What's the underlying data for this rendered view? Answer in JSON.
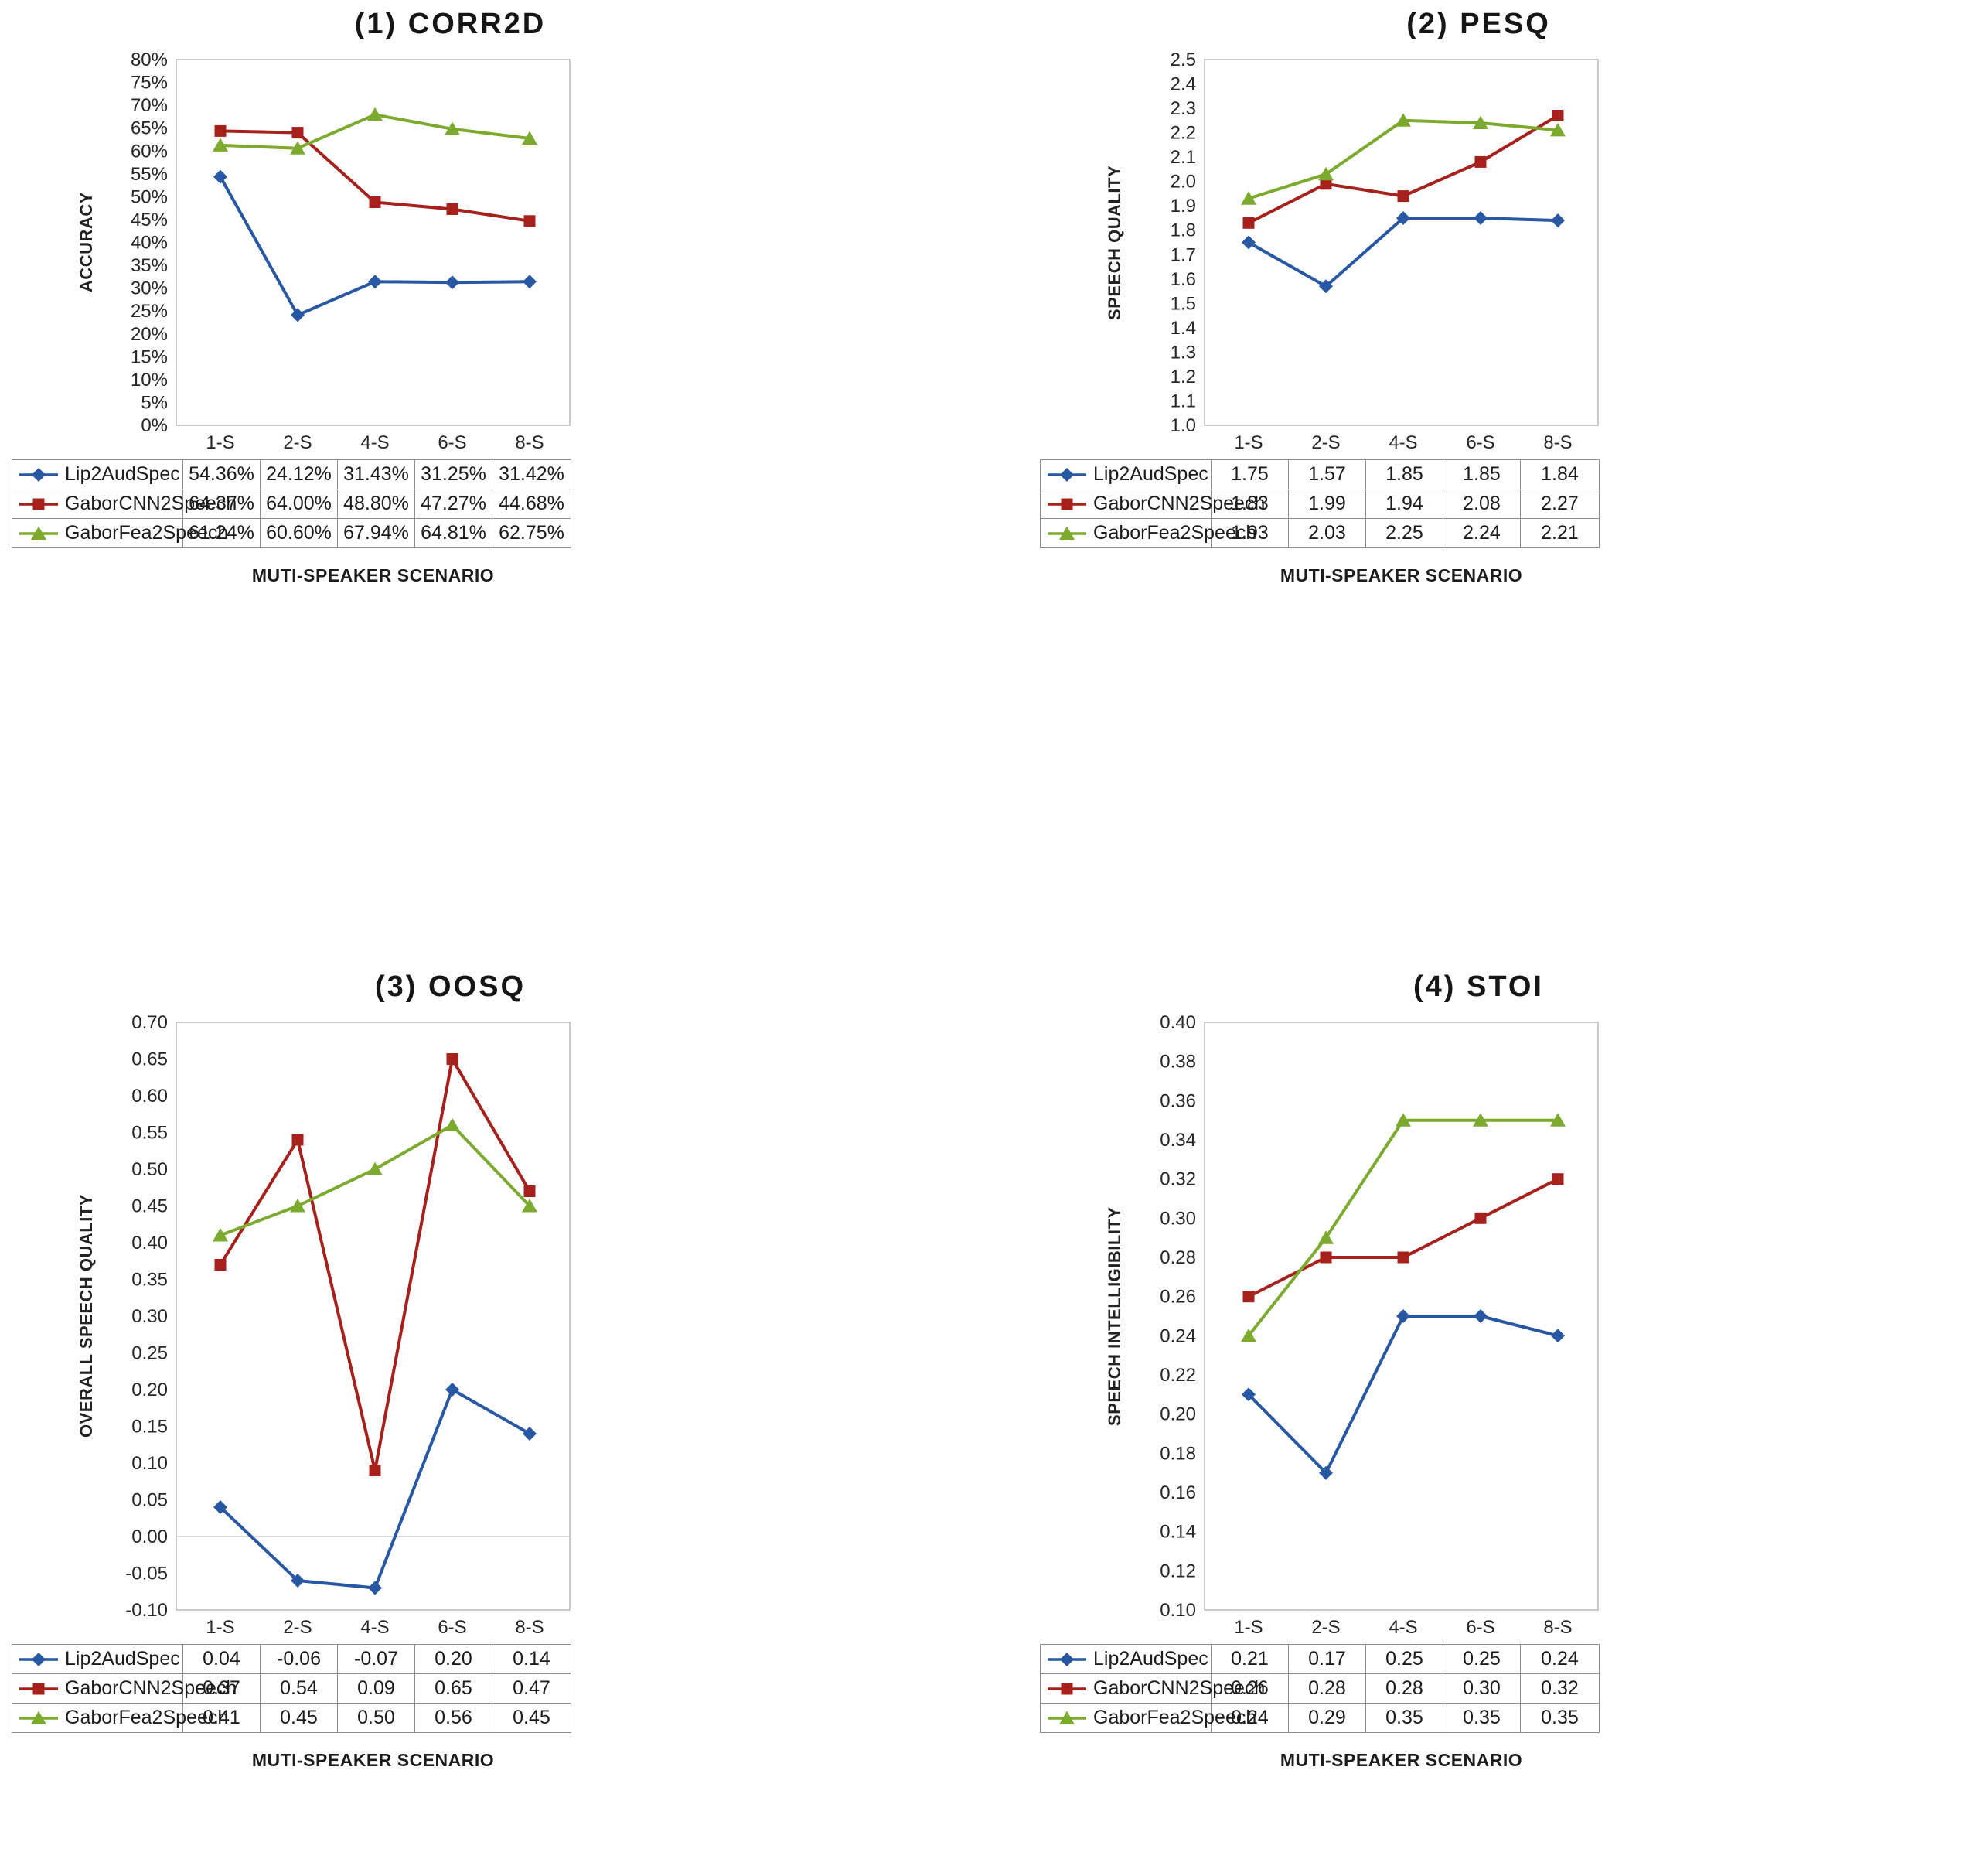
{
  "chart_data": [
    {
      "type": "line",
      "title": "(1) CORR2D",
      "ylabel": "ACCURACY",
      "xlabel": "MUTI-SPEAKER SCENARIO",
      "categories": [
        "1-S",
        "2-S",
        "4-S",
        "6-S",
        "8-S"
      ],
      "ymin": 0,
      "ymax": 80,
      "ystep": 5,
      "yticks": [
        "80%",
        "75%",
        "70%",
        "65%",
        "60%",
        "55%",
        "50%",
        "45%",
        "40%",
        "35%",
        "30%",
        "25%",
        "20%",
        "15%",
        "10%",
        "5%",
        "0%"
      ],
      "grid": false,
      "legend_position": "table-below",
      "series": [
        {
          "name": "Lip2AudSpec",
          "marker": "diamond",
          "color": "#2857A4",
          "values": [
            54.36,
            24.12,
            31.43,
            31.25,
            31.42
          ],
          "labels": [
            "54.36%",
            "24.12%",
            "31.43%",
            "31.25%",
            "31.42%"
          ]
        },
        {
          "name": "GaborCNN2Speech",
          "marker": "square",
          "color": "#A6201C",
          "values": [
            64.37,
            64.0,
            48.8,
            47.27,
            44.68
          ],
          "labels": [
            "64.37%",
            "64.00%",
            "48.80%",
            "47.27%",
            "44.68%"
          ]
        },
        {
          "name": "GaborFea2Speech",
          "marker": "triangle",
          "color": "#7BAA2E",
          "values": [
            61.24,
            60.6,
            67.94,
            64.81,
            62.75
          ],
          "labels": [
            "61.24%",
            "60.60%",
            "67.94%",
            "64.81%",
            "62.75%"
          ]
        }
      ]
    },
    {
      "type": "line",
      "title": "(2) PESQ",
      "ylabel": "SPEECH QUALITY",
      "xlabel": "MUTI-SPEAKER SCENARIO",
      "categories": [
        "1-S",
        "2-S",
        "4-S",
        "6-S",
        "8-S"
      ],
      "ymin": 1.0,
      "ymax": 2.5,
      "ystep": 0.1,
      "yticks": [
        "2.5",
        "2.4",
        "2.3",
        "2.2",
        "2.1",
        "2.0",
        "1.9",
        "1.8",
        "1.7",
        "1.6",
        "1.5",
        "1.4",
        "1.3",
        "1.2",
        "1.1",
        "1.0"
      ],
      "grid": false,
      "legend_position": "table-below",
      "series": [
        {
          "name": "Lip2AudSpec",
          "marker": "diamond",
          "color": "#2857A4",
          "values": [
            1.75,
            1.57,
            1.85,
            1.85,
            1.84
          ],
          "labels": [
            "1.75",
            "1.57",
            "1.85",
            "1.85",
            "1.84"
          ]
        },
        {
          "name": "GaborCNN2Speech",
          "marker": "square",
          "color": "#A6201C",
          "values": [
            1.83,
            1.99,
            1.94,
            2.08,
            2.27
          ],
          "labels": [
            "1.83",
            "1.99",
            "1.94",
            "2.08",
            "2.27"
          ]
        },
        {
          "name": "GaborFea2Speech",
          "marker": "triangle",
          "color": "#7BAA2E",
          "values": [
            1.93,
            2.03,
            2.25,
            2.24,
            2.21
          ],
          "labels": [
            "1.93",
            "2.03",
            "2.25",
            "2.24",
            "2.21"
          ]
        }
      ]
    },
    {
      "type": "line",
      "title": "(3) OOSQ",
      "ylabel": "OVERALL SPEECH QUALITY",
      "xlabel": "MUTI-SPEAKER SCENARIO",
      "categories": [
        "1-S",
        "2-S",
        "4-S",
        "6-S",
        "8-S"
      ],
      "ymin": -0.1,
      "ymax": 0.7,
      "ystep": 0.05,
      "yticks": [
        "0.70",
        "0.65",
        "0.60",
        "0.55",
        "0.50",
        "0.45",
        "0.40",
        "0.35",
        "0.30",
        "0.25",
        "0.20",
        "0.15",
        "0.10",
        "0.05",
        "0.00",
        "-0.05",
        "-0.10"
      ],
      "grid": false,
      "legend_position": "table-below",
      "series": [
        {
          "name": "Lip2AudSpec",
          "marker": "diamond",
          "color": "#2857A4",
          "values": [
            0.04,
            -0.06,
            -0.07,
            0.2,
            0.14
          ],
          "labels": [
            "0.04",
            "-0.06",
            "-0.07",
            "0.20",
            "0.14"
          ]
        },
        {
          "name": "GaborCNN2Speech",
          "marker": "square",
          "color": "#A6201C",
          "values": [
            0.37,
            0.54,
            0.09,
            0.65,
            0.47
          ],
          "labels": [
            "0.37",
            "0.54",
            "0.09",
            "0.65",
            "0.47"
          ]
        },
        {
          "name": "GaborFea2Speech",
          "marker": "triangle",
          "color": "#7BAA2E",
          "values": [
            0.41,
            0.45,
            0.5,
            0.56,
            0.45
          ],
          "labels": [
            "0.41",
            "0.45",
            "0.50",
            "0.56",
            "0.45"
          ]
        }
      ]
    },
    {
      "type": "line",
      "title": "(4) STOI",
      "ylabel": "SPEECH INTELLIGIBILITY",
      "xlabel": "MUTI-SPEAKER SCENARIO",
      "categories": [
        "1-S",
        "2-S",
        "4-S",
        "6-S",
        "8-S"
      ],
      "ymin": 0.1,
      "ymax": 0.4,
      "ystep": 0.02,
      "yticks": [
        "0.40",
        "0.38",
        "0.36",
        "0.34",
        "0.32",
        "0.30",
        "0.28",
        "0.26",
        "0.24",
        "0.22",
        "0.20",
        "0.18",
        "0.16",
        "0.14",
        "0.12",
        "0.10"
      ],
      "grid": false,
      "legend_position": "table-below",
      "series": [
        {
          "name": "Lip2AudSpec",
          "marker": "diamond",
          "color": "#2857A4",
          "values": [
            0.21,
            0.17,
            0.25,
            0.25,
            0.24
          ],
          "labels": [
            "0.21",
            "0.17",
            "0.25",
            "0.25",
            "0.24"
          ]
        },
        {
          "name": "GaborCNN2Speech",
          "marker": "square",
          "color": "#A6201C",
          "values": [
            0.26,
            0.28,
            0.28,
            0.3,
            0.32
          ],
          "labels": [
            "0.26",
            "0.28",
            "0.28",
            "0.30",
            "0.32"
          ]
        },
        {
          "name": "GaborFea2Speech",
          "marker": "triangle",
          "color": "#7BAA2E",
          "values": [
            0.24,
            0.29,
            0.35,
            0.35,
            0.35
          ],
          "labels": [
            "0.24",
            "0.29",
            "0.35",
            "0.35",
            "0.35"
          ]
        }
      ]
    }
  ],
  "colors": {
    "series_blue": "#2857A4",
    "series_red": "#A6201C",
    "series_green": "#7BAA2E",
    "plot_frame": "#b8b8b8",
    "table_border": "#8f8f8f"
  }
}
